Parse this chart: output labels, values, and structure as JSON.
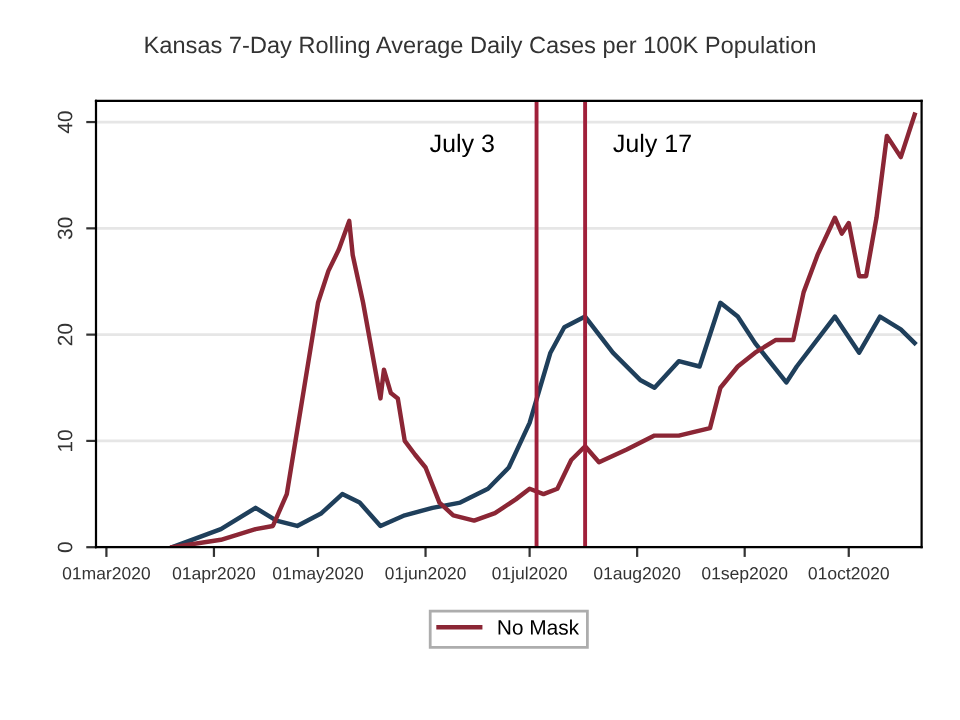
{
  "chart_data": {
    "type": "line",
    "title": "Kansas 7-Day Rolling Average Daily Cases per 100K Population",
    "series": [
      {
        "color": "#1f3f5b",
        "x": [
          "2020-03-20",
          "2020-04-03",
          "2020-04-13",
          "2020-04-19",
          "2020-04-25",
          "2020-05-02",
          "2020-05-08",
          "2020-05-13",
          "2020-05-19",
          "2020-05-26",
          "2020-06-03",
          "2020-06-11",
          "2020-06-19",
          "2020-06-25",
          "2020-07-01",
          "2020-07-07",
          "2020-07-11",
          "2020-07-17",
          "2020-07-25",
          "2020-08-02",
          "2020-08-06",
          "2020-08-13",
          "2020-08-19",
          "2020-08-25",
          "2020-08-30",
          "2020-09-04",
          "2020-09-13",
          "2020-09-16",
          "2020-09-27",
          "2020-10-04",
          "2020-10-10",
          "2020-10-16",
          "2020-10-20"
        ],
        "values": [
          0,
          1.7,
          3.7,
          2.5,
          2,
          3.2,
          5,
          4.2,
          2,
          3,
          3.7,
          4.2,
          5.5,
          7.5,
          11.7,
          18.3,
          20.7,
          21.7,
          18.3,
          15.7,
          15,
          17.5,
          17,
          23,
          21.7,
          19.2,
          15.5,
          17,
          21.7,
          18.3,
          21.7,
          20.5,
          19.2
        ]
      },
      {
        "name": "No Mask",
        "color": "#8b2635",
        "x": [
          "2020-03-20",
          "2020-04-03",
          "2020-04-13",
          "2020-04-18",
          "2020-04-22",
          "2020-04-27",
          "2020-05-01",
          "2020-05-04",
          "2020-05-07",
          "2020-05-10",
          "2020-05-11",
          "2020-05-14",
          "2020-05-19",
          "2020-05-20",
          "2020-05-22",
          "2020-05-24",
          "2020-05-26",
          "2020-05-29",
          "2020-06-01",
          "2020-06-05",
          "2020-06-09",
          "2020-06-15",
          "2020-06-21",
          "2020-06-27",
          "2020-07-01",
          "2020-07-05",
          "2020-07-09",
          "2020-07-13",
          "2020-07-17",
          "2020-07-21",
          "2020-07-29",
          "2020-08-06",
          "2020-08-13",
          "2020-08-22",
          "2020-08-25",
          "2020-08-30",
          "2020-09-04",
          "2020-09-10",
          "2020-09-15",
          "2020-09-18",
          "2020-09-22",
          "2020-09-27",
          "2020-09-29",
          "2020-10-01",
          "2020-10-04",
          "2020-10-06",
          "2020-10-09",
          "2020-10-12",
          "2020-10-16",
          "2020-10-18",
          "2020-10-20"
        ],
        "values": [
          0,
          0.7,
          1.7,
          2,
          5,
          15,
          23,
          26,
          28,
          30.7,
          27.5,
          23,
          14,
          16.7,
          14.5,
          14,
          10,
          8.7,
          7.5,
          4.2,
          3,
          2.5,
          3.2,
          4.5,
          5.5,
          5,
          5.5,
          8.2,
          9.5,
          8,
          9.2,
          10.5,
          10.5,
          11.2,
          15,
          17,
          18.3,
          19.5,
          19.5,
          24,
          27.5,
          31,
          29.5,
          30.5,
          25.5,
          25.5,
          31,
          38.7,
          36.7,
          38.7,
          40.7
        ]
      }
    ],
    "xlim": [
      "2020-02-27",
      "2020-10-22"
    ],
    "xticks": [
      {
        "value": "2020-03-01",
        "label": "01mar2020"
      },
      {
        "value": "2020-04-01",
        "label": "01apr2020"
      },
      {
        "value": "2020-05-01",
        "label": "01may2020"
      },
      {
        "value": "2020-06-01",
        "label": "01jun2020"
      },
      {
        "value": "2020-07-01",
        "label": "01jul2020"
      },
      {
        "value": "2020-08-01",
        "label": "01aug2020"
      },
      {
        "value": "2020-09-01",
        "label": "01sep2020"
      },
      {
        "value": "2020-10-01",
        "label": "01oct2020"
      }
    ],
    "ylim": [
      0,
      42
    ],
    "yticks": [
      0,
      10,
      20,
      30,
      40
    ],
    "ref_lines": [
      {
        "axis": "x",
        "value": "2020-07-03",
        "label": "July 3",
        "color": "#a0203a"
      },
      {
        "axis": "x",
        "value": "2020-07-17",
        "label": "July 17",
        "color": "#a0203a"
      }
    ],
    "grid": "y",
    "legend": "bottom"
  }
}
